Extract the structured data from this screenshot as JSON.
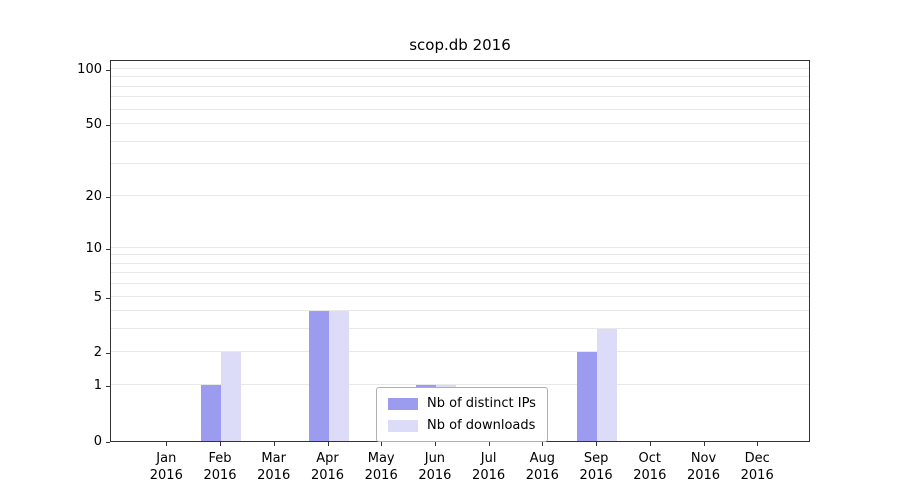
{
  "chart_data": {
    "type": "bar",
    "title": "scop.db 2016",
    "categories": [
      "Jan 2016",
      "Feb 2016",
      "Mar 2016",
      "Apr 2016",
      "May 2016",
      "Jun 2016",
      "Jul 2016",
      "Aug 2016",
      "Sep 2016",
      "Oct 2016",
      "Nov 2016",
      "Dec 2016"
    ],
    "series": [
      {
        "name": "Nb of distinct IPs",
        "color": "#9b9bf0",
        "values": [
          0,
          1,
          0,
          4,
          0,
          1,
          0,
          0,
          2,
          0,
          0,
          0
        ]
      },
      {
        "name": "Nb of downloads",
        "color": "#dcdcf9",
        "values": [
          0,
          2,
          0,
          4,
          0,
          1,
          0,
          0,
          3,
          0,
          0,
          0
        ]
      }
    ],
    "xlabel": "",
    "ylabel": "",
    "scale": "log1p",
    "ylim": [
      0,
      100
    ],
    "yticks": [
      0,
      1,
      2,
      5,
      10,
      20,
      50,
      100
    ],
    "gridline_values": [
      1,
      2,
      3,
      4,
      5,
      6,
      7,
      8,
      9,
      10,
      20,
      30,
      40,
      50,
      60,
      70,
      80,
      90,
      100
    ],
    "grid": true,
    "legend_position": "lower center"
  }
}
